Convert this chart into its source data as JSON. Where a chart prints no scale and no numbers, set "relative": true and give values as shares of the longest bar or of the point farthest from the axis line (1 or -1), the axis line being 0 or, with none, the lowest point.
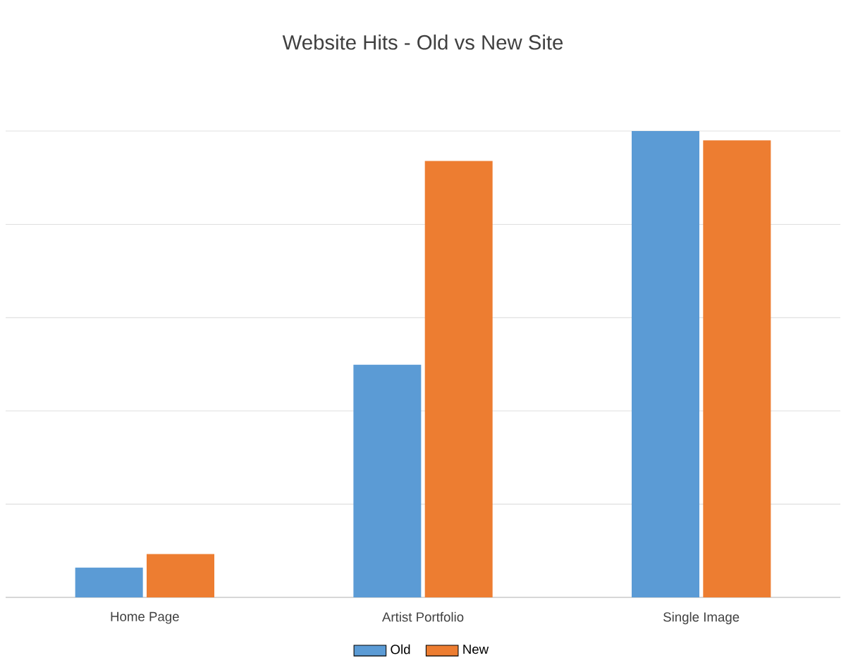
{
  "chart_data": {
    "type": "bar",
    "title": "Website Hits - Old vs New Site",
    "categories": [
      "Home Page",
      "Artist Portfolio",
      "Single Image"
    ],
    "series": [
      {
        "name": "Old",
        "color": "#5b9bd5",
        "values": [
          0.064,
          0.499,
          1
        ]
      },
      {
        "name": "New",
        "color": "#ed7d31",
        "values": [
          0.093,
          0.936,
          0.98
        ]
      }
    ],
    "relative": true,
    "grid": "y",
    "legend": "bottom"
  }
}
